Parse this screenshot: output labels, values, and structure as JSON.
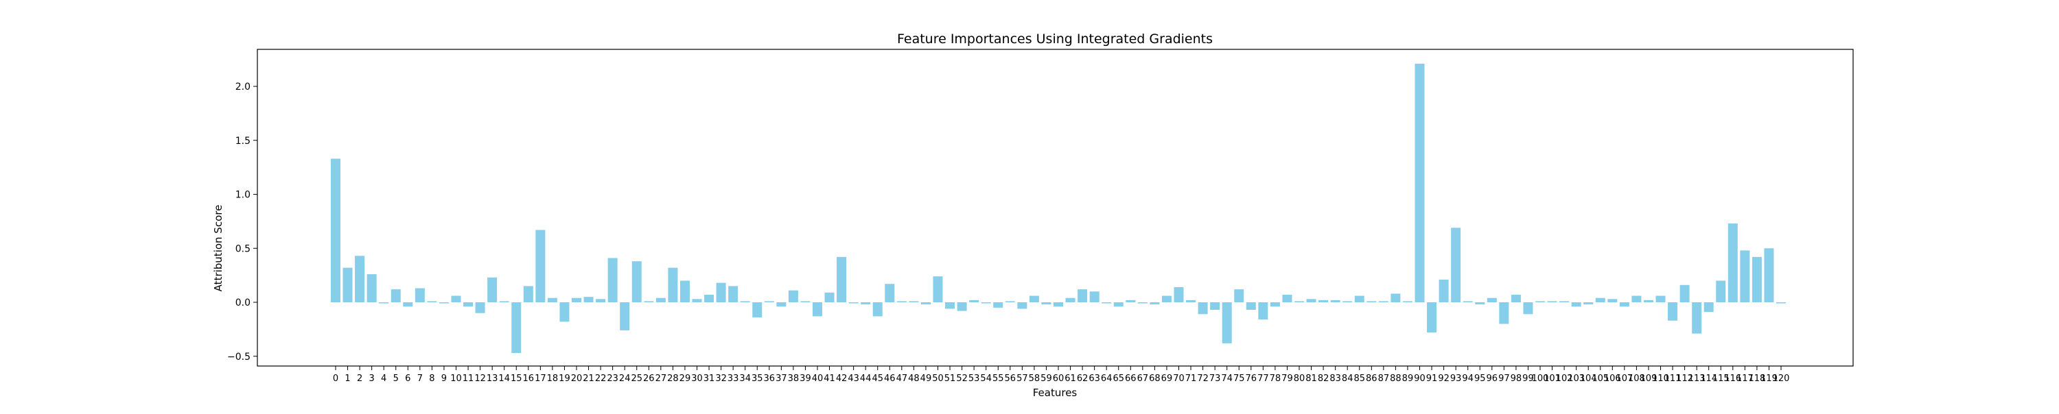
{
  "chart_data": {
    "type": "bar",
    "title": "Feature Importances Using Integrated Gradients",
    "xlabel": "Features",
    "ylabel": "Attribution Score",
    "ylim": [
      -0.6,
      2.3
    ],
    "yticks": [
      -0.5,
      0.0,
      0.5,
      1.0,
      1.5,
      2.0
    ],
    "ytick_labels": [
      "−0.5",
      "0.0",
      "0.5",
      "1.0",
      "1.5",
      "2.0"
    ],
    "grid": false,
    "bar_color": "#87CEEB",
    "categories": [
      "0",
      "1",
      "2",
      "3",
      "4",
      "5",
      "6",
      "7",
      "8",
      "9",
      "10",
      "11",
      "12",
      "13",
      "14",
      "15",
      "16",
      "17",
      "18",
      "19",
      "20",
      "21",
      "22",
      "23",
      "24",
      "25",
      "26",
      "27",
      "28",
      "29",
      "30",
      "31",
      "32",
      "33",
      "34",
      "35",
      "36",
      "37",
      "38",
      "39",
      "40",
      "41",
      "42",
      "43",
      "44",
      "45",
      "46",
      "47",
      "48",
      "49",
      "50",
      "51",
      "52",
      "53",
      "54",
      "55",
      "56",
      "57",
      "58",
      "59",
      "60",
      "61",
      "62",
      "63",
      "64",
      "65",
      "66",
      "67",
      "68",
      "69",
      "70",
      "71",
      "72",
      "73",
      "74",
      "75",
      "76",
      "77",
      "78",
      "79",
      "80",
      "81",
      "82",
      "83",
      "84",
      "85",
      "86",
      "87",
      "88",
      "89",
      "90",
      "91",
      "92",
      "93",
      "94",
      "95",
      "96",
      "97",
      "98",
      "99",
      "100",
      "101",
      "102",
      "103",
      "104",
      "105",
      "106",
      "107",
      "108",
      "109",
      "110",
      "111",
      "112",
      "113",
      "114",
      "115",
      "116",
      "117",
      "118",
      "119",
      "120"
    ],
    "values": [
      1.33,
      0.32,
      0.43,
      0.26,
      -0.01,
      0.12,
      -0.04,
      0.13,
      0.01,
      -0.01,
      0.06,
      -0.04,
      -0.1,
      0.23,
      0.01,
      -0.47,
      0.15,
      0.67,
      0.04,
      -0.18,
      0.04,
      0.05,
      0.03,
      0.41,
      -0.26,
      0.38,
      0.01,
      0.04,
      0.32,
      0.2,
      0.03,
      0.07,
      0.18,
      0.15,
      0.01,
      -0.14,
      0.01,
      -0.04,
      0.11,
      0.01,
      -0.13,
      0.09,
      0.42,
      -0.01,
      -0.02,
      -0.13,
      0.17,
      0.01,
      0.01,
      -0.02,
      0.24,
      -0.06,
      -0.08,
      0.02,
      -0.01,
      -0.05,
      0.01,
      -0.06,
      0.06,
      -0.02,
      -0.04,
      0.04,
      0.12,
      0.1,
      -0.01,
      -0.04,
      0.02,
      -0.01,
      -0.02,
      0.06,
      0.14,
      0.02,
      -0.11,
      -0.07,
      -0.38,
      0.12,
      -0.07,
      -0.16,
      -0.04,
      0.07,
      0.01,
      0.03,
      0.02,
      0.02,
      0.01,
      0.06,
      0.01,
      0.01,
      0.08,
      0.01,
      2.21,
      -0.28,
      0.21,
      0.69,
      0.01,
      -0.02,
      0.04,
      -0.2,
      0.07,
      -0.11,
      0.01,
      0.01,
      0.01,
      -0.04,
      -0.02,
      0.04,
      0.03,
      -0.04,
      0.06,
      0.02,
      0.06,
      -0.17,
      0.16,
      -0.29,
      -0.09,
      0.2,
      0.73,
      0.48,
      0.42,
      0.5,
      -0.01
    ]
  }
}
